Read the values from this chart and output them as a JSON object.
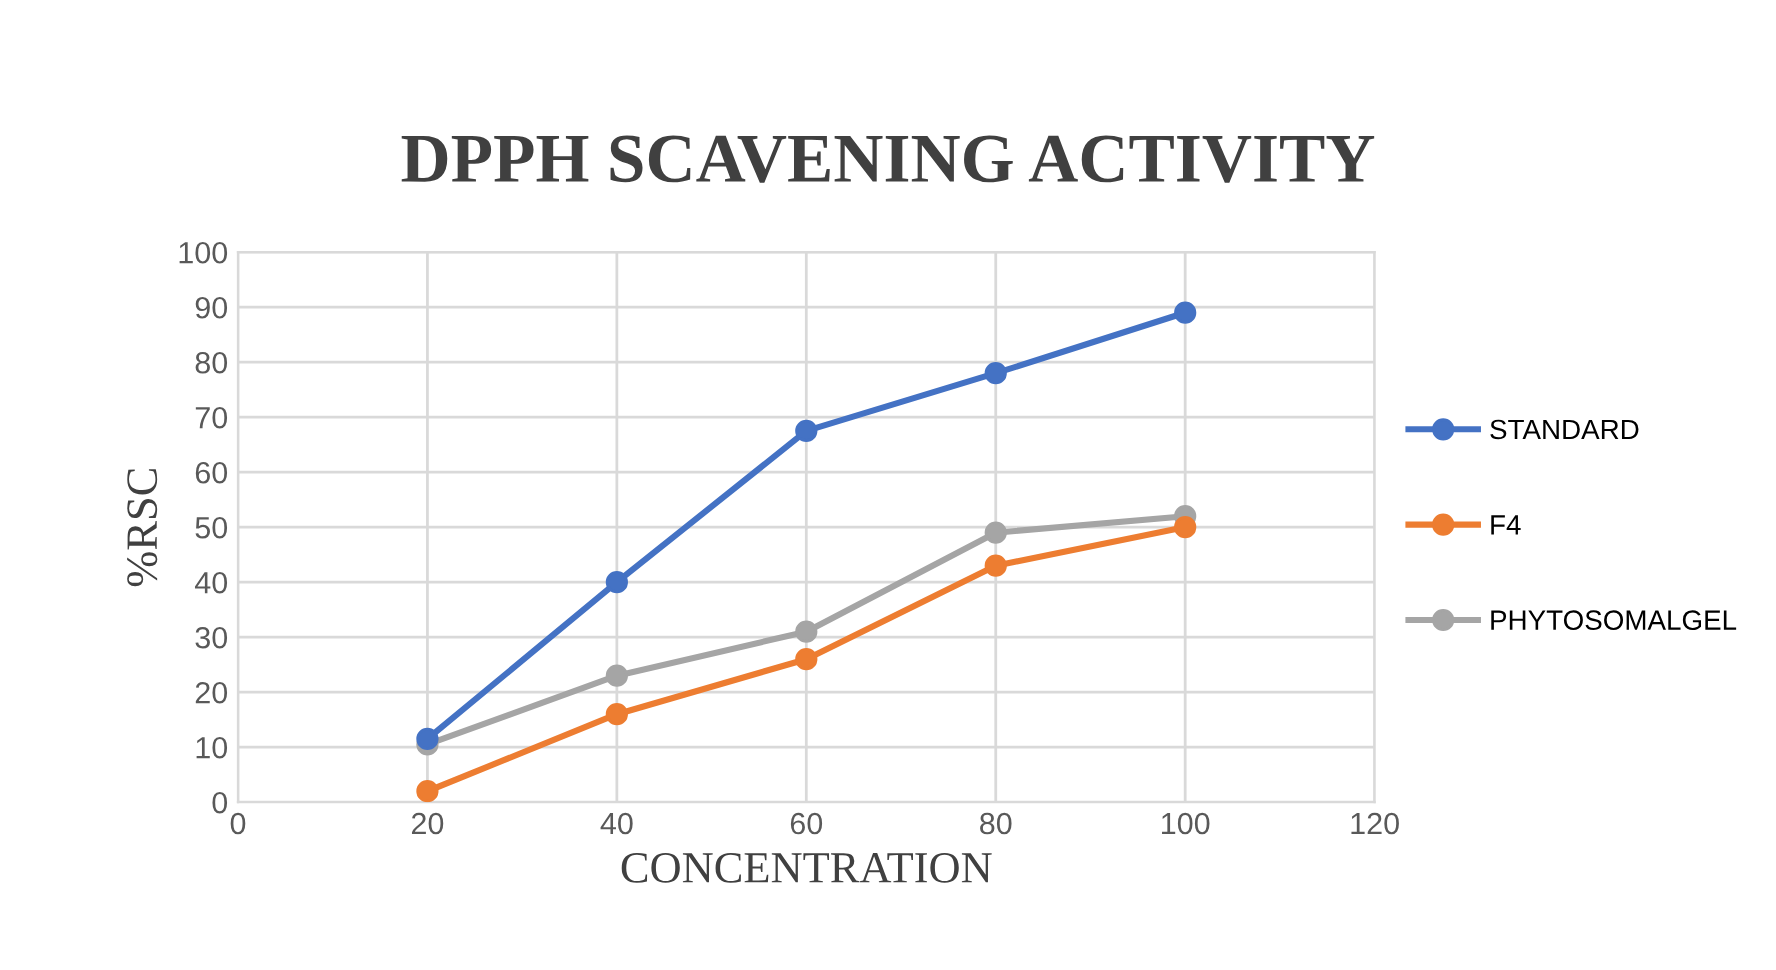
{
  "chart_data": {
    "type": "line",
    "title": "DPPH SCAVENING ACTIVITY",
    "xlabel": "CONCENTRATION",
    "ylabel": "%RSC",
    "x": [
      20,
      40,
      60,
      80,
      100
    ],
    "series": [
      {
        "name": "STANDARD",
        "color": "#4472c4",
        "values": [
          11.5,
          40,
          67.5,
          78,
          89
        ]
      },
      {
        "name": "F4",
        "color": "#ed7d31",
        "values": [
          2,
          16,
          26,
          43,
          50
        ]
      },
      {
        "name": "PHYTOSOMALGEL",
        "color": "#a5a5a5",
        "values": [
          10.5,
          23,
          31,
          49,
          52
        ]
      }
    ],
    "xlim": [
      0,
      120
    ],
    "xticks": [
      0,
      20,
      40,
      60,
      80,
      100,
      120
    ],
    "ylim": [
      0,
      100
    ],
    "yticks": [
      0,
      10,
      20,
      30,
      40,
      50,
      60,
      70,
      80,
      90,
      100
    ],
    "grid": true,
    "legend": "right",
    "marker": "circle",
    "line_style": "solid"
  }
}
